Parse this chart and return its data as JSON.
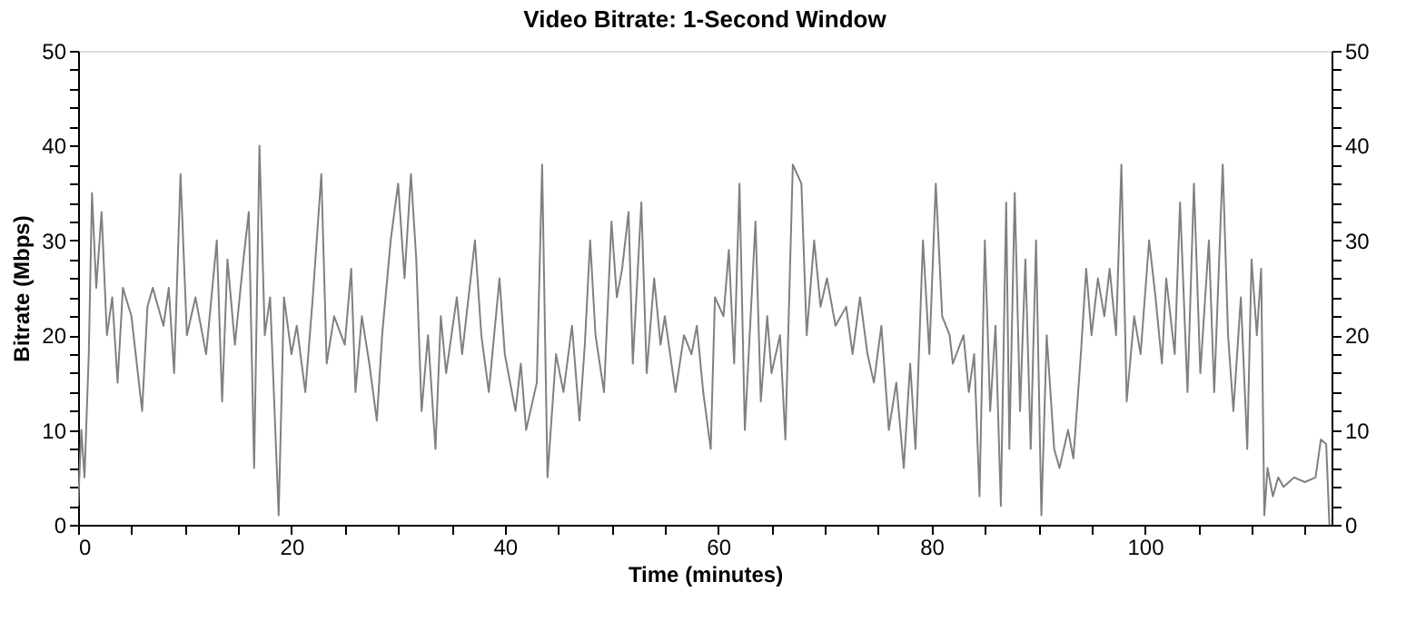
{
  "chart_data": {
    "type": "line",
    "title": "Video Bitrate: 1-Second Window",
    "xlabel": "Time (minutes)",
    "ylabel": "Bitrate (Mbps)",
    "xlim": [
      0,
      117.5
    ],
    "xticks": [
      0,
      {
        "value": 5,
        "label": null
      },
      {
        "value": 10,
        "label": null
      },
      {
        "value": 15,
        "label": null
      },
      20,
      {
        "value": 25,
        "label": null
      },
      {
        "value": 30,
        "label": null
      },
      {
        "value": 35,
        "label": null
      },
      40,
      {
        "value": 45,
        "label": null
      },
      {
        "value": 50,
        "label": null
      },
      {
        "value": 55,
        "label": null
      },
      60,
      {
        "value": 65,
        "label": null
      },
      {
        "value": 70,
        "label": null
      },
      {
        "value": 75,
        "label": null
      },
      80,
      {
        "value": 85,
        "label": null
      },
      {
        "value": 90,
        "label": null
      },
      {
        "value": 95,
        "label": null
      },
      100,
      {
        "value": 105,
        "label": null
      },
      {
        "value": 110,
        "label": null
      },
      {
        "value": 115,
        "label": null
      }
    ],
    "ylim": [
      0,
      50
    ],
    "yticks": [
      0,
      {
        "value": 2,
        "label": null
      },
      {
        "value": 4,
        "label": null
      },
      {
        "value": 6,
        "label": null
      },
      {
        "value": 8,
        "label": null
      },
      10,
      {
        "value": 12,
        "label": null
      },
      {
        "value": 14,
        "label": null
      },
      {
        "value": 16,
        "label": null
      },
      {
        "value": 18,
        "label": null
      },
      20,
      {
        "value": 22,
        "label": null
      },
      {
        "value": 24,
        "label": null
      },
      {
        "value": 26,
        "label": null
      },
      {
        "value": 28,
        "label": null
      },
      30,
      {
        "value": 32,
        "label": null
      },
      {
        "value": 34,
        "label": null
      },
      {
        "value": 36,
        "label": null
      },
      {
        "value": 38,
        "label": null
      },
      40,
      {
        "value": 42,
        "label": null
      },
      {
        "value": 44,
        "label": null
      },
      {
        "value": 46,
        "label": null
      },
      {
        "value": 48,
        "label": null
      },
      50
    ],
    "y2lim": [
      0,
      50
    ],
    "y2ticks": [
      0,
      {
        "value": 2,
        "label": null
      },
      {
        "value": 4,
        "label": null
      },
      {
        "value": 6,
        "label": null
      },
      {
        "value": 8,
        "label": null
      },
      10,
      {
        "value": 12,
        "label": null
      },
      {
        "value": 14,
        "label": null
      },
      {
        "value": 16,
        "label": null
      },
      {
        "value": 18,
        "label": null
      },
      20,
      {
        "value": 22,
        "label": null
      },
      {
        "value": 24,
        "label": null
      },
      {
        "value": 26,
        "label": null
      },
      {
        "value": 28,
        "label": null
      },
      30,
      {
        "value": 32,
        "label": null
      },
      {
        "value": 34,
        "label": null
      },
      {
        "value": 36,
        "label": null
      },
      {
        "value": 38,
        "label": null
      },
      40,
      {
        "value": 42,
        "label": null
      },
      {
        "value": 44,
        "label": null
      },
      {
        "value": 46,
        "label": null
      },
      {
        "value": 48,
        "label": null
      },
      50
    ],
    "grid": false,
    "marker": "none",
    "line_style": "solid",
    "series": [
      {
        "color": "#808080",
        "x": [
          0,
          0.3,
          0.6,
          1,
          1.3,
          1.7,
          2.2,
          2.7,
          3.2,
          3.7,
          4.2,
          5,
          6,
          6.5,
          7,
          8,
          8.5,
          9,
          9.6,
          10.2,
          11,
          12,
          13,
          13.5,
          14,
          14.7,
          15.5,
          16,
          16.5,
          17,
          17.5,
          18,
          18.8,
          19.3,
          20,
          20.5,
          21.3,
          22,
          22.8,
          23.3,
          24,
          25,
          25.6,
          26,
          26.6,
          27.3,
          28,
          28.5,
          29.3,
          30,
          30.6,
          31.2,
          31.7,
          32.2,
          32.8,
          33.5,
          34,
          34.5,
          35.5,
          36,
          37.2,
          37.8,
          38.5,
          39.5,
          40,
          41,
          41.5,
          42,
          43,
          43.5,
          44,
          44.8,
          45.5,
          46.3,
          47,
          47.5,
          48,
          48.5,
          49.3,
          50,
          50.5,
          51,
          51.6,
          52,
          52.8,
          53.3,
          54,
          54.6,
          55,
          56,
          56.8,
          57.5,
          58,
          58.6,
          59.3,
          59.7,
          60.5,
          61,
          61.5,
          62,
          62.5,
          63.5,
          64,
          64.6,
          65,
          65.8,
          66.3,
          67,
          67.8,
          68.3,
          69,
          69.6,
          70.2,
          71,
          72,
          72.6,
          73.3,
          74,
          74.6,
          75.3,
          76,
          76.7,
          77.4,
          78,
          78.5,
          79.2,
          79.8,
          80.4,
          81,
          81.7,
          82,
          83,
          83.5,
          84,
          84.5,
          85,
          85.5,
          86,
          86.5,
          87,
          87.3,
          87.8,
          88.3,
          88.8,
          89.3,
          89.8,
          90.3,
          90.8,
          91.5,
          92,
          92.8,
          93.3,
          94,
          94.5,
          95,
          95.6,
          96.2,
          96.7,
          97.3,
          97.8,
          98.3,
          99,
          99.6,
          100.4,
          101,
          101.6,
          102,
          102.8,
          103.3,
          104,
          104.6,
          105.2,
          106,
          106.5,
          107.3,
          107.8,
          108.3,
          109,
          109.6,
          110,
          110.5,
          110.9,
          111.2,
          111.5,
          112,
          112.5,
          113,
          114,
          115,
          116,
          116.5,
          117,
          117.3
        ],
        "values": [
          2,
          10,
          5,
          18,
          35,
          25,
          33,
          20,
          24,
          15,
          25,
          22,
          12,
          23,
          25,
          21,
          25,
          16,
          37,
          20,
          24,
          18,
          30,
          13,
          28,
          19,
          28,
          33,
          6,
          40,
          20,
          24,
          1,
          24,
          18,
          21,
          14,
          24,
          37,
          17,
          22,
          19,
          27,
          14,
          22,
          17,
          11,
          20,
          30,
          36,
          26,
          37,
          28,
          12,
          20,
          8,
          22,
          16,
          24,
          18,
          30,
          20,
          14,
          26,
          18,
          12,
          17,
          10,
          15,
          38,
          5,
          18,
          14,
          21,
          11,
          19,
          30,
          20,
          14,
          32,
          24,
          27,
          33,
          17,
          34,
          16,
          26,
          19,
          22,
          14,
          20,
          18,
          21,
          14,
          8,
          24,
          22,
          29,
          17,
          36,
          10,
          32,
          13,
          22,
          16,
          20,
          9,
          38,
          36,
          20,
          30,
          23,
          26,
          21,
          23,
          18,
          24,
          18,
          15,
          21,
          10,
          15,
          6,
          17,
          8,
          30,
          18,
          36,
          22,
          20,
          17,
          20,
          14,
          18,
          3,
          30,
          12,
          21,
          2,
          34,
          8,
          35,
          12,
          28,
          8,
          30,
          1,
          20,
          8,
          6,
          10,
          7,
          18,
          27,
          20,
          26,
          22,
          27,
          20,
          38,
          13,
          22,
          18,
          30,
          24,
          17,
          26,
          18,
          34,
          14,
          36,
          16,
          30,
          14,
          38,
          20,
          12,
          24,
          8,
          28,
          20,
          27,
          1,
          6,
          3,
          5,
          4,
          5,
          4.5,
          5,
          9,
          8.5,
          0
        ]
      }
    ]
  }
}
